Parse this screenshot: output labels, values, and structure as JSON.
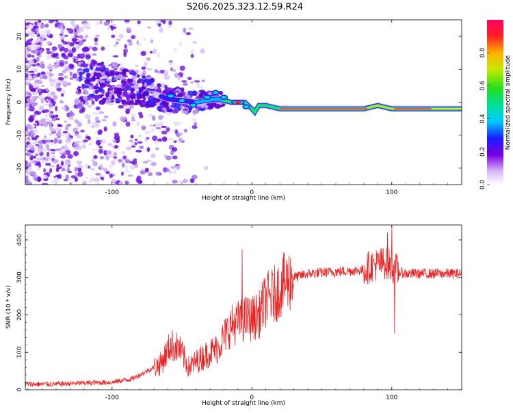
{
  "chart_data": [
    {
      "type": "heatmap",
      "title": "S206.2025.323.12.59.R24",
      "xlabel": "Height of straight line (km)",
      "ylabel": "Frequency (Hz)",
      "xlim": [
        -162,
        150
      ],
      "ylim": [
        -25,
        25
      ],
      "xticks": [
        -100,
        0,
        100
      ],
      "xticklabels": [
        "-100",
        "0",
        "100"
      ],
      "yticks": [
        20,
        10,
        0,
        -10,
        -20
      ],
      "yticklabels": [
        "20",
        "10",
        "0",
        "-10",
        "-20"
      ],
      "colorbar": {
        "label": "Normalized spectral amplitude",
        "range": [
          0,
          1
        ],
        "ticks": [
          0.0,
          0.2,
          0.4,
          0.6,
          0.8
        ],
        "ticklabels": [
          "0.0",
          "0.2",
          "0.4",
          "0.6",
          "0.8"
        ]
      },
      "ridge": {
        "description_points_km": [
          -100,
          -80,
          -60,
          -40,
          -25,
          -15,
          -5,
          0,
          2,
          5,
          10,
          20,
          50,
          80,
          90,
          100,
          120,
          150
        ],
        "frequency_hz": [
          6,
          4,
          1,
          0,
          1,
          0,
          0,
          -2,
          -3,
          -1,
          -1,
          -2,
          -2,
          -2,
          -1,
          -2,
          -2,
          -2
        ]
      }
    },
    {
      "type": "line",
      "title": "",
      "xlabel": "Height of straight line (km)",
      "ylabel": "SNR (10 * v/v)",
      "xlim": [
        -162,
        150
      ],
      "ylim": [
        0,
        440
      ],
      "xticks": [
        -100,
        0,
        100
      ],
      "xticklabels": [
        "-100",
        "0",
        "100"
      ],
      "yticks": [
        0,
        100,
        200,
        300,
        400
      ],
      "yticklabels": [
        "0",
        "100",
        "200",
        "300",
        "400"
      ],
      "series": [
        {
          "name": "SNR",
          "color": "#ee2222",
          "x": [
            -162,
            -140,
            -120,
            -100,
            -85,
            -75,
            -65,
            -58,
            -52,
            -45,
            -38,
            -30,
            -25,
            -20,
            -15,
            -10,
            -5,
            0,
            5,
            10,
            15,
            20,
            25,
            30,
            40,
            60,
            80,
            85,
            90,
            95,
            100,
            105,
            110,
            130,
            150
          ],
          "y": [
            15,
            15,
            18,
            20,
            30,
            50,
            70,
            120,
            110,
            60,
            80,
            100,
            110,
            140,
            170,
            180,
            190,
            190,
            200,
            240,
            250,
            270,
            290,
            300,
            310,
            315,
            320,
            330,
            335,
            340,
            330,
            315,
            310,
            310,
            310
          ]
        }
      ],
      "spikes": [
        {
          "x": -7,
          "y": 375
        },
        {
          "x": 100,
          "y": 440
        },
        {
          "x": 97,
          "y": 420
        },
        {
          "x": 102,
          "y": 150
        }
      ]
    }
  ]
}
